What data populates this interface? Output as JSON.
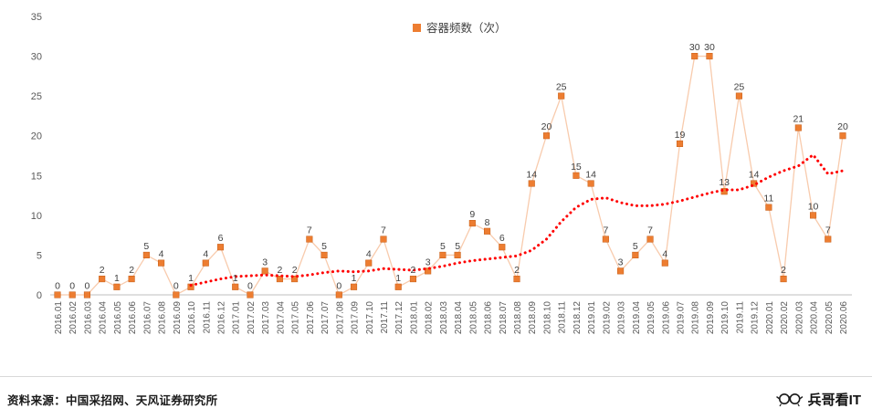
{
  "chart_data": {
    "type": "line",
    "title": "",
    "legend_position": "top",
    "grid": false,
    "xlabel": "",
    "ylabel": "",
    "ylim": [
      0,
      35
    ],
    "yticks": [
      0,
      5,
      10,
      15,
      20,
      25,
      30,
      35
    ],
    "categories": [
      "2016.01",
      "2016.02",
      "2016.03",
      "2016.04",
      "2016.05",
      "2016.06",
      "2016.07",
      "2016.08",
      "2016.09",
      "2016.10",
      "2016.11",
      "2016.12",
      "2017.01",
      "2017.02",
      "2017.03",
      "2017.04",
      "2017.05",
      "2017.06",
      "2017.07",
      "2017.08",
      "2017.09",
      "2017.10",
      "2017.11",
      "2017.12",
      "2018.01",
      "2018.02",
      "2018.03",
      "2018.04",
      "2018.05",
      "2018.06",
      "2018.07",
      "2018.08",
      "2018.09",
      "2018.10",
      "2018.11",
      "2018.12",
      "2019.01",
      "2019.02",
      "2019.03",
      "2019.04",
      "2019.05",
      "2019.06",
      "2019.07",
      "2019.08",
      "2019.09",
      "2019.10",
      "2019.11",
      "2019.12",
      "2020.01",
      "2020.02",
      "2020.03",
      "2020.04",
      "2020.05",
      "2020.06"
    ],
    "series": [
      {
        "name": "容器频数（次）",
        "values": [
          0,
          0,
          0,
          2,
          1,
          2,
          5,
          4,
          0,
          1,
          4,
          6,
          1,
          0,
          3,
          2,
          2,
          7,
          5,
          0,
          1,
          4,
          7,
          1,
          2,
          3,
          5,
          5,
          9,
          8,
          6,
          2,
          14,
          20,
          25,
          15,
          14,
          7,
          3,
          5,
          7,
          4,
          19,
          30,
          30,
          13,
          25,
          14,
          11,
          2,
          21,
          10,
          7,
          20
        ]
      }
    ],
    "trend": {
      "name": "trend-moving-average",
      "color": "#ff0000",
      "start_index": 9,
      "values": [
        1.2,
        1.6,
        2.0,
        2.3,
        2.4,
        2.5,
        2.4,
        2.3,
        2.5,
        2.8,
        3.0,
        2.9,
        3.0,
        3.3,
        3.2,
        3.1,
        3.3,
        3.6,
        4.0,
        4.3,
        4.5,
        4.7,
        4.9,
        5.6,
        7.0,
        9.2,
        11.0,
        12.0,
        12.2,
        11.6,
        11.2,
        11.2,
        11.4,
        11.8,
        12.3,
        12.8,
        13.2,
        13.2,
        13.8,
        14.8,
        15.6,
        16.2,
        17.6,
        15.2,
        15.6
      ]
    }
  },
  "legend": {
    "label": "容器频数（次）"
  },
  "colors": {
    "marker": "#ED7D31",
    "marker_edge": "#C55A11",
    "series_line": "#F8CBAD",
    "trend_line": "#ff0000",
    "axis_line": "#BFBFBF",
    "tick_text": "#595959",
    "label_text": "#404040"
  },
  "footer": {
    "source": "资料来源：中国采招网、天风证券研究所",
    "watermark": "兵哥看IT"
  }
}
